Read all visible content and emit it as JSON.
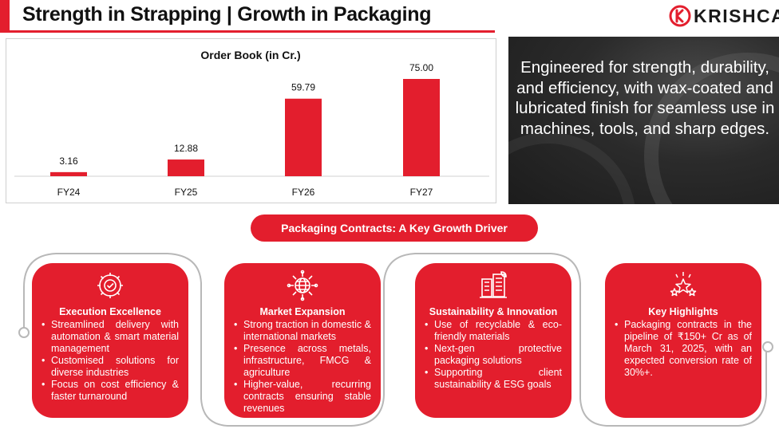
{
  "header": {
    "title": "Strength in Strapping | Growth in Packaging",
    "logo_text": "KRISHCA"
  },
  "chart_data": {
    "type": "bar",
    "title": "Order Book (in Cr.)",
    "categories": [
      "FY24",
      "FY25",
      "FY26",
      "FY27"
    ],
    "values": [
      3.16,
      12.88,
      59.79,
      75.0
    ],
    "value_labels": [
      "3.16",
      "12.88",
      "59.79",
      "75.00"
    ],
    "xlabel": "",
    "ylabel": "",
    "ylim": [
      0,
      75
    ],
    "grid": false,
    "color": "#e31e2d"
  },
  "photo_panel": {
    "text": "Engineered for strength, durability, and efficiency, with wax-coated and lubricated finish for seamless use in machines, tools, and sharp edges."
  },
  "section": {
    "label": "Packaging Contracts: A Key Growth Driver"
  },
  "cards": [
    {
      "title": "Execution Excellence",
      "icon": "gear-check-icon",
      "bullets": [
        "Streamlined delivery with automation & smart material management",
        "Customised solutions for diverse industries",
        "Focus on cost efficiency & faster turnaround"
      ]
    },
    {
      "title": "Market Expansion",
      "icon": "globe-network-icon",
      "bullets": [
        "Strong traction in domestic & international markets",
        "Presence across metals, infrastructure, FMCG & agriculture",
        "Higher-value, recurring contracts ensuring stable revenues"
      ]
    },
    {
      "title": "Sustainability & Innovation",
      "icon": "eco-building-icon",
      "bullets": [
        "Use of recyclable & eco-friendly materials",
        "Next-gen protective packaging solutions",
        "Supporting client sustainability & ESG goals"
      ]
    },
    {
      "title": "Key Highlights",
      "icon": "stars-icon",
      "bullets": [
        "Packaging contracts in the pipeline of ₹150+ Cr as of March 31, 2025, with an expected conversion rate of 30%+."
      ]
    }
  ],
  "colors": {
    "accent": "#e31e2d",
    "dark": "#111111"
  }
}
